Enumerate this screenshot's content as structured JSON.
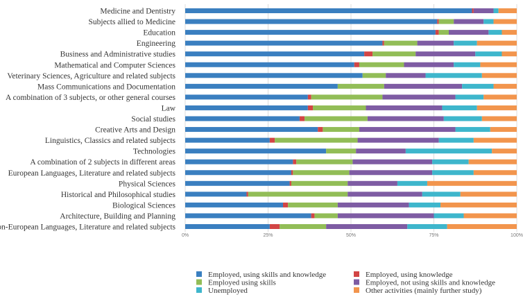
{
  "chart_data": {
    "type": "bar",
    "orientation": "horizontal",
    "stacked": true,
    "normalized": true,
    "xlim": [
      0,
      100
    ],
    "x_ticks": [
      {
        "value": 0,
        "label": "0%"
      },
      {
        "value": 25,
        "label": "25%"
      },
      {
        "value": 50,
        "label": "50%"
      },
      {
        "value": 75,
        "label": "75%"
      },
      {
        "value": 100,
        "label": "100%"
      }
    ],
    "grid": "vertical",
    "legend_position": "bottom",
    "categories": [
      "Medicine and Dentistry",
      "Subjects allied to Medicine",
      "Education",
      "Engineering",
      "Business and Administrative studies",
      "Mathematical and Computer Sciences",
      "Veterinary Sciences, Agriculture and related subjects",
      "Mass Communications and Documentation",
      "A combination of 3 subjects, or other general courses",
      "Law",
      "Social studies",
      "Creative Arts and Design",
      "Linguistics, Classics and related subjects",
      "Technologies",
      "A combination of 2 subjects in different areas",
      "European Languages, Literature and related subjects",
      "Physical Sciences",
      "Historical and Philosophical studies",
      "Biological Sciences",
      "Architecture, Building and Planning",
      "Non-European Languages, Literature and related subjects"
    ],
    "series": [
      {
        "name": "Employed, using skills and knowledge",
        "color": "#3a7fc0",
        "values": [
          86.5,
          76,
          75.5,
          59.5,
          54,
          51,
          53.5,
          46,
          37,
          37,
          34.5,
          40,
          25.5,
          42.5,
          32.5,
          32,
          31.5,
          18.5,
          29.5,
          38,
          25.5
        ]
      },
      {
        "name": "Employed, using knowledge",
        "color": "#d24545",
        "values": [
          0.5,
          0.5,
          1,
          0.5,
          2.5,
          1.5,
          0,
          0,
          1,
          1.5,
          1.5,
          1.5,
          1.5,
          0,
          1,
          0.5,
          0.5,
          0.5,
          1.5,
          1,
          3
        ]
      },
      {
        "name": "Employed using skills",
        "color": "#92bd57",
        "values": [
          0,
          4.5,
          3,
          10,
          13,
          13.5,
          7,
          14,
          21.5,
          16,
          19,
          11,
          25,
          9,
          17,
          17,
          17,
          30,
          15,
          7,
          14
        ]
      },
      {
        "name": "Employed, not using skills and knowledge",
        "color": "#7e5ca3",
        "values": [
          6,
          9,
          12,
          11,
          18,
          15,
          12,
          23.5,
          22,
          23,
          23,
          29,
          24.5,
          15,
          24,
          25,
          15,
          22.5,
          21.5,
          29,
          24.5
        ]
      },
      {
        "name": "Unemployed",
        "color": "#3eb6cc",
        "values": [
          1.5,
          3,
          4,
          7,
          8,
          8,
          17,
          9.5,
          8.5,
          10.5,
          11.5,
          10.5,
          10.5,
          26,
          11,
          12.5,
          9,
          11.5,
          9.5,
          9,
          12
        ]
      },
      {
        "name": "Other activities (mainly further study)",
        "color": "#f2954d",
        "values": [
          5.5,
          7,
          4.5,
          12,
          4.5,
          11,
          10.5,
          7,
          10,
          12,
          10.5,
          8,
          13,
          7.5,
          14.5,
          13,
          27,
          17,
          23,
          16,
          21
        ]
      }
    ]
  }
}
